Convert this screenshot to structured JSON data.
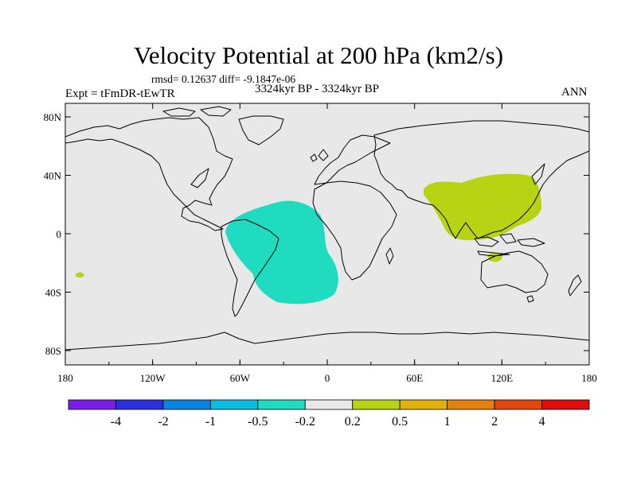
{
  "title": "Velocity Potential at 200 hPa (km2/s)",
  "rmsd_line": "rmsd= 0.12637  diff= -9.1847e-06",
  "expt": "Expt = tFmDR-tEwTR",
  "period": "3324kyr BP - 3324kyr BP",
  "season": "ANN",
  "map": {
    "background_color": "#e8e8e8",
    "lat_ticks": [
      "80N",
      "40N",
      "0",
      "40S",
      "80S"
    ],
    "lon_ticks": [
      "180",
      "120W",
      "60W",
      "0",
      "60E",
      "120E",
      "180"
    ],
    "anomalies": [
      {
        "name": "south-atlantic-negative",
        "color": "#1fdcc1"
      },
      {
        "name": "south-asia-positive",
        "color": "#b8d313"
      },
      {
        "name": "australia-positive",
        "color": "#b8d313"
      },
      {
        "name": "pacific-positive",
        "color": "#b8d313"
      }
    ]
  },
  "colorbar": {
    "colors": [
      "#7c1ee8",
      "#2b2fe0",
      "#0a84e0",
      "#0bbde3",
      "#1fdcc1",
      "#e8e8e8",
      "#b8d313",
      "#e2b10c",
      "#e2820c",
      "#e2480c",
      "#e20c0c"
    ],
    "labels": [
      "-4",
      "-2",
      "-1",
      "-0.5",
      "-0.2",
      "0.2",
      "0.5",
      "1",
      "2",
      "4"
    ]
  }
}
